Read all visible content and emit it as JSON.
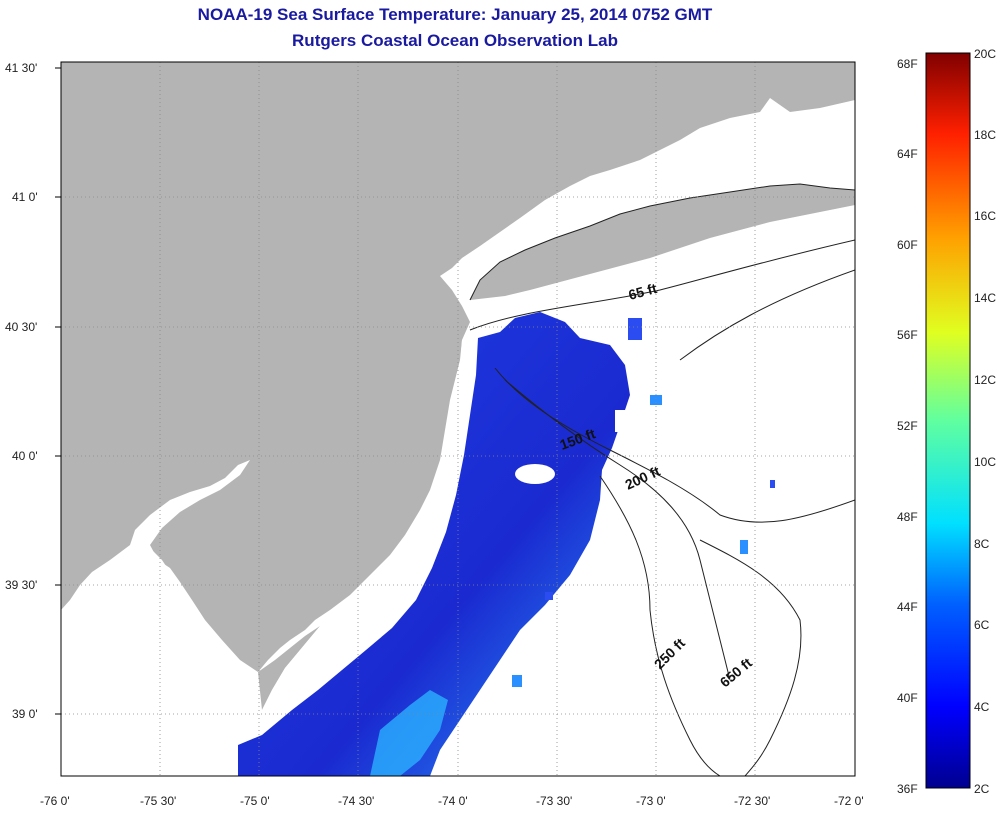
{
  "header": {
    "title": "NOAA-19 Sea Surface Temperature:  January 25, 2014 0752 GMT",
    "subtitle": "Rutgers Coastal Ocean Observation Lab"
  },
  "axes": {
    "lat_ticks": [
      "41 30'",
      "41 0'",
      "40 30'",
      "40 0'",
      "39 30'",
      "39 0'"
    ],
    "lon_ticks": [
      "-76 0'",
      "-75 30'",
      "-75 0'",
      "-74 30'",
      "-74 0'",
      "-73 30'",
      "-73 0'",
      "-72 30'",
      "-72 0'"
    ]
  },
  "contours": {
    "labels": [
      "65 ft",
      "150 ft",
      "200 ft",
      "250 ft",
      "650 ft"
    ]
  },
  "colorbar": {
    "fahrenheit": [
      "68F",
      "64F",
      "60F",
      "56F",
      "52F",
      "48F",
      "44F",
      "40F",
      "36F"
    ],
    "celsius": [
      "20C",
      "18C",
      "16C",
      "14C",
      "12C",
      "10C",
      "8C",
      "6C",
      "4C",
      "2C"
    ]
  },
  "colors": {
    "land": "#b4b4b4",
    "title": "#1a1aa0",
    "cold_water": "#1a2fd8",
    "warm_water": "#2aa8ff"
  }
}
